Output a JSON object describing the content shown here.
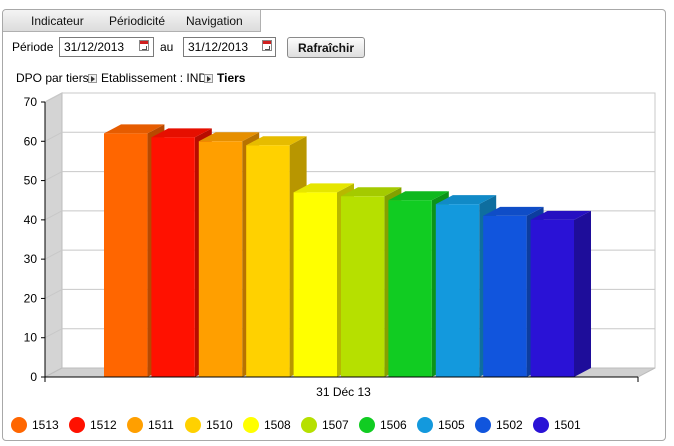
{
  "menu": {
    "items": [
      "Indicateur",
      "Périodicité",
      "Navigation"
    ]
  },
  "filters": {
    "period_label": "Période",
    "from_value": "31/12/2013",
    "separator": "au",
    "to_value": "31/12/2013",
    "refresh_label": "Rafraîchir",
    "calendar_icon": "calendar-icon"
  },
  "breadcrumb": {
    "items": [
      "DPO par tiers",
      "Etablissement : IND",
      "Tiers"
    ]
  },
  "chart_data": {
    "type": "bar",
    "categories": [
      "31 Déc 13"
    ],
    "series": [
      {
        "name": "1513",
        "values": [
          62
        ],
        "color": "#ff6600"
      },
      {
        "name": "1512",
        "values": [
          61
        ],
        "color": "#ff1100"
      },
      {
        "name": "1511",
        "values": [
          60
        ],
        "color": "#ff9f00"
      },
      {
        "name": "1510",
        "values": [
          59
        ],
        "color": "#ffd100"
      },
      {
        "name": "1508",
        "values": [
          47
        ],
        "color": "#ffff00"
      },
      {
        "name": "1507",
        "values": [
          46
        ],
        "color": "#b6e000"
      },
      {
        "name": "1506",
        "values": [
          45
        ],
        "color": "#11cc22"
      },
      {
        "name": "1505",
        "values": [
          44
        ],
        "color": "#1399dd"
      },
      {
        "name": "1502",
        "values": [
          41
        ],
        "color": "#1155dd"
      },
      {
        "name": "1501",
        "values": [
          40
        ],
        "color": "#2a12d6"
      }
    ],
    "y_ticks": [
      "0",
      "10",
      "20",
      "30",
      "40",
      "50",
      "60",
      "70"
    ],
    "ylim": [
      0,
      70
    ],
    "grid": true,
    "legend": "bottom",
    "style": "3d"
  }
}
